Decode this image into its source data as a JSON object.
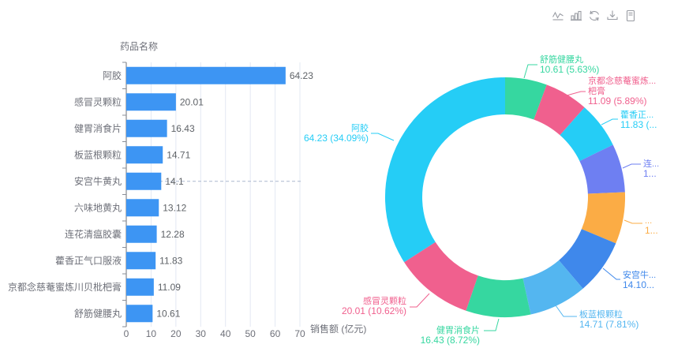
{
  "toolbar": {
    "icons": [
      {
        "name": "toggle-line-chart"
      },
      {
        "name": "toggle-bar-chart"
      },
      {
        "name": "restore"
      },
      {
        "name": "save-as-image"
      },
      {
        "name": "data-view"
      }
    ]
  },
  "colors": {
    "bar": "#3D95F3",
    "grid": "#E3E8F3",
    "axis_line": "#6E7079",
    "axis_text": "#6E7079",
    "value_label": "#5E6267",
    "axis_pointer": "#ABB7CE",
    "toolbar_icon": "#999CA3",
    "palette": [
      "#36D7A0",
      "#F0608E",
      "#25CDF6",
      "#6E7FF2",
      "#FBAC45",
      "#3F88EB",
      "#54B6F0"
    ]
  },
  "chart_data": [
    {
      "type": "bar",
      "orientation": "horizontal",
      "ylabel": "药品名称",
      "xlabel": "销售额 (亿元)",
      "xlim": [
        0,
        70
      ],
      "xticks": [
        "0",
        "10",
        "20",
        "30",
        "40",
        "50",
        "60",
        "70"
      ],
      "grid": true,
      "categories": [
        "阿胶",
        "感冒灵颗粒",
        "健胃消食片",
        "板蓝根颗粒",
        "安宫牛黄丸",
        "六味地黄丸",
        "连花清瘟胶囊",
        "藿香正气口服液",
        "京都念慈菴蜜炼川贝枇杷膏",
        "舒筋健腰丸"
      ],
      "values": [
        64.23,
        20.01,
        16.43,
        14.71,
        14.1,
        13.12,
        12.28,
        11.83,
        11.09,
        10.61
      ],
      "value_labels": [
        "64.23",
        "20.01",
        "16.43",
        "14.71",
        "14.1",
        "13.12",
        "12.28",
        "11.83",
        "11.09",
        "10.61"
      ],
      "axis_pointer_category": "安宫牛黄丸"
    },
    {
      "type": "pie",
      "subtype": "donut",
      "legend_position": "none",
      "start_angle_deg": -90,
      "clockwise": true,
      "items": [
        {
          "name": "舒筋健腰丸",
          "value": 10.61,
          "color": "#36D7A0",
          "label_lines": [
            "舒筋健腰丸",
            "10.61 (5.63%)"
          ]
        },
        {
          "name": "京都念慈菴蜜炼川贝枇杷膏",
          "value": 11.09,
          "color": "#F0608E",
          "label_lines": [
            "京都念慈菴蜜炼...",
            "杷膏",
            "11.09 (5.89%)"
          ]
        },
        {
          "name": "藿香正气口服液",
          "value": 11.83,
          "color": "#25CDF6",
          "label_lines": [
            "藿香正...",
            "11.83 (..."
          ]
        },
        {
          "name": "连花清瘟胶囊",
          "value": 12.28,
          "color": "#6E7FF2",
          "label_lines": [
            "连...",
            "1..."
          ]
        },
        {
          "name": "六味地黄丸",
          "value": 13.12,
          "color": "#FBAC45",
          "label_lines": [
            "...",
            "1..."
          ]
        },
        {
          "name": "安宫牛黄丸",
          "value": 14.1,
          "color": "#3F88EB",
          "label_lines": [
            "安宫牛...",
            "14.10..."
          ]
        },
        {
          "name": "板蓝根颗粒",
          "value": 14.71,
          "color": "#54B6F0",
          "label_lines": [
            "板蓝根颗粒",
            "14.71 (7.81%)"
          ]
        },
        {
          "name": "健胃消食片",
          "value": 16.43,
          "color": "#36D7A0",
          "label_lines": [
            "健胃消食片",
            "16.43 (8.72%)"
          ]
        },
        {
          "name": "感冒灵颗粒",
          "value": 20.01,
          "color": "#F0608E",
          "label_lines": [
            "感冒灵颗粒",
            "20.01 (10.62%)"
          ]
        },
        {
          "name": "阿胶",
          "value": 64.23,
          "color": "#25CDF6",
          "label_lines": [
            "阿胶",
            "64.23 (34.09%)"
          ]
        }
      ]
    }
  ]
}
